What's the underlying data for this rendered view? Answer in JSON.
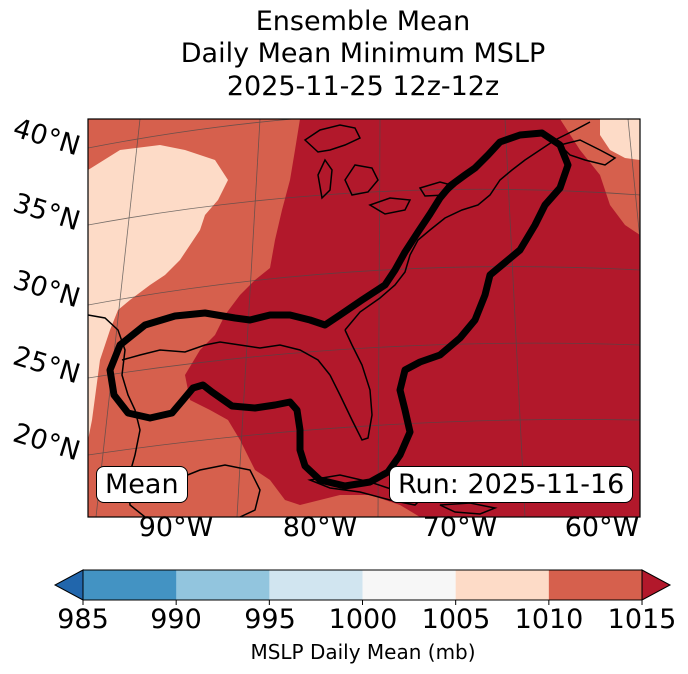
{
  "title": {
    "line1": "Ensemble Mean",
    "line2": "Daily Mean Minimum MSLP",
    "line3": "2025-11-25 12z-12z"
  },
  "map": {
    "lat_labels": [
      "40°N",
      "35°N",
      "30°N",
      "25°N",
      "20°N"
    ],
    "lon_labels": [
      "90°W",
      "80°W",
      "70°W",
      "60°W"
    ],
    "mean_label": "Mean",
    "run_label": "Run: 2025-11-16",
    "colors": {
      "shade_1005_1010": "#fddbc7",
      "shade_1010_1015": "#d6604d",
      "shade_over_1015": "#b2182b",
      "contour": "#000000"
    }
  },
  "colorbar": {
    "label": "MSLP Daily Mean (mb)",
    "ticks": [
      "985",
      "990",
      "995",
      "1000",
      "1005",
      "1010",
      "1015"
    ],
    "colors": [
      "#2166ac",
      "#4393c3",
      "#92c5de",
      "#d1e5f0",
      "#f7f7f7",
      "#fddbc7",
      "#d6604d",
      "#b2182b"
    ]
  }
}
